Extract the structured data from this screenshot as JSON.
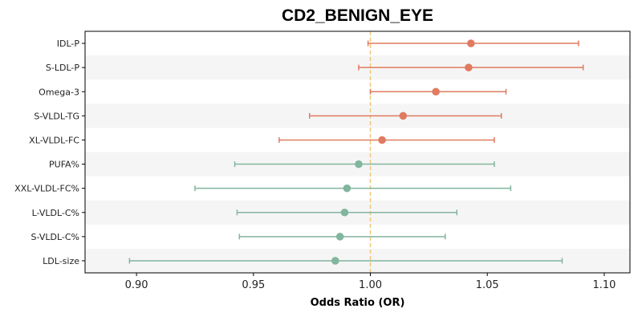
{
  "chart_data": {
    "type": "forest",
    "title": "CD2_BENIGN_EYE",
    "xlabel": "Odds Ratio (OR)",
    "ylabel": "",
    "xlim": [
      0.878,
      1.111
    ],
    "x_ticks": [
      "0.90",
      "0.95",
      "1.00",
      "1.05",
      "1.10"
    ],
    "x_tick_values": [
      0.9,
      0.95,
      1.0,
      1.05,
      1.1
    ],
    "reference_line": 1.0,
    "reference_line_color": "#f2c67a",
    "grid": false,
    "alternating_row_shading": true,
    "colors": {
      "above_one": "#e07b5f",
      "below_one": "#82b59e",
      "row_shade": "#f5f5f5",
      "axis": "#000000"
    },
    "rows": [
      {
        "label": "IDL-P",
        "or": 1.043,
        "lower": 0.999,
        "upper": 1.089
      },
      {
        "label": "S-LDL-P",
        "or": 1.042,
        "lower": 0.995,
        "upper": 1.091
      },
      {
        "label": "Omega-3",
        "or": 1.028,
        "lower": 1.0,
        "upper": 1.058
      },
      {
        "label": "S-VLDL-TG",
        "or": 1.014,
        "lower": 0.974,
        "upper": 1.056
      },
      {
        "label": "XL-VLDL-FC",
        "or": 1.005,
        "lower": 0.961,
        "upper": 1.053
      },
      {
        "label": "PUFA%",
        "or": 0.995,
        "lower": 0.942,
        "upper": 1.053
      },
      {
        "label": "XXL-VLDL-FC%",
        "or": 0.99,
        "lower": 0.925,
        "upper": 1.06
      },
      {
        "label": "L-VLDL-C%",
        "or": 0.989,
        "lower": 0.943,
        "upper": 1.037
      },
      {
        "label": "S-VLDL-C%",
        "or": 0.987,
        "lower": 0.944,
        "upper": 1.032
      },
      {
        "label": "LDL-size",
        "or": 0.985,
        "lower": 0.897,
        "upper": 1.082
      }
    ]
  }
}
